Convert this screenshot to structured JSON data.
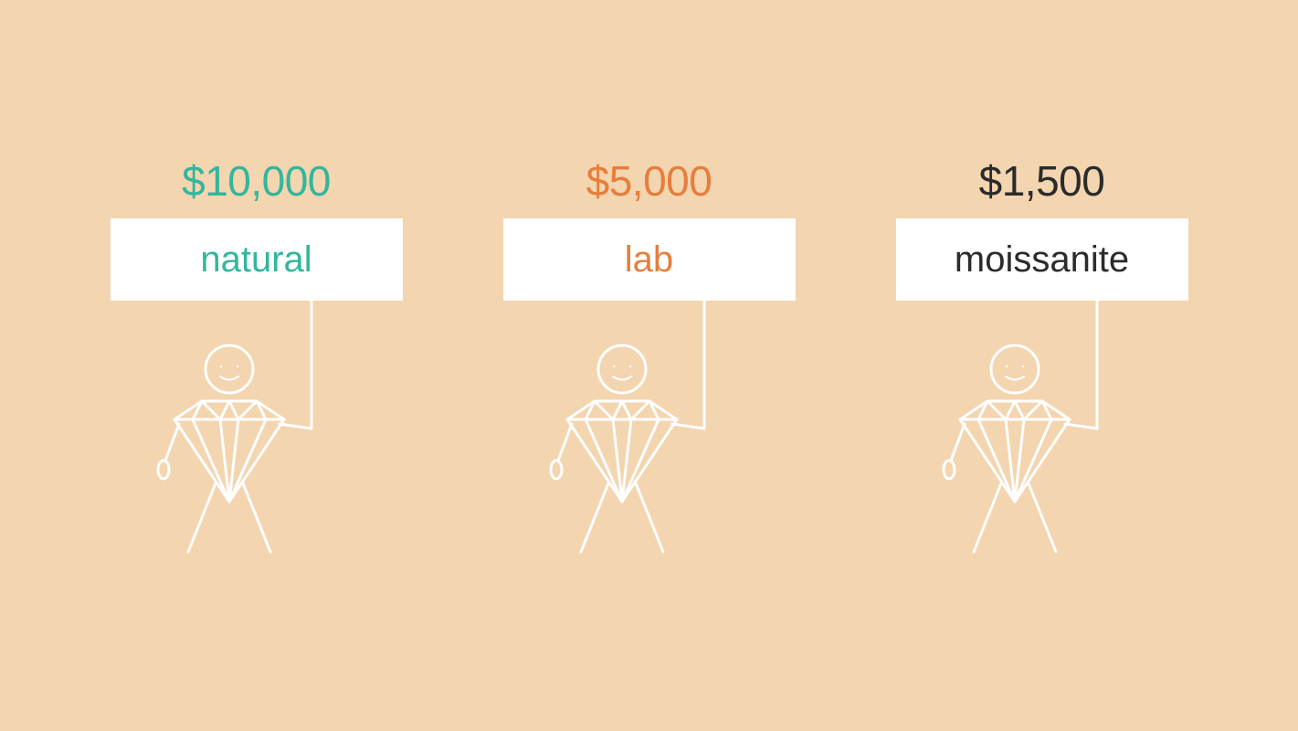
{
  "type": "infographic",
  "background_color": "#f3d5b0",
  "figure_stroke_color": "#ffffff",
  "figure_stroke_width": 3,
  "sign_background": "#ffffff",
  "price_fontsize": 46,
  "label_fontsize": 40,
  "panels": [
    {
      "price": "$10,000",
      "label": "natural",
      "color": "#33b69c"
    },
    {
      "price": "$5,000",
      "label": "lab",
      "color": "#e67e3c"
    },
    {
      "price": "$1,500",
      "label": "moissanite",
      "color": "#2b2b2b"
    }
  ]
}
